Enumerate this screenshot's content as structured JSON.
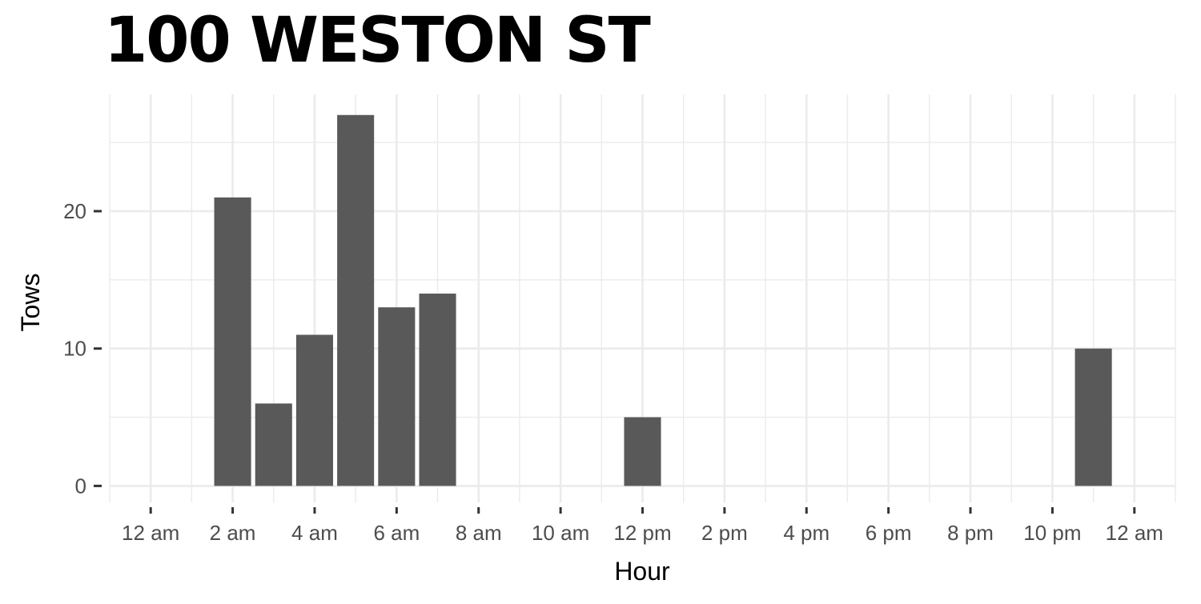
{
  "chart_data": {
    "type": "bar",
    "title": "100 WESTON ST",
    "xlabel": "Hour",
    "ylabel": "Tows",
    "x_ticks": [
      "12 am",
      "2 am",
      "4 am",
      "6 am",
      "8 am",
      "10 am",
      "12 pm",
      "2 pm",
      "4 pm",
      "6 pm",
      "8 pm",
      "10 pm",
      "12 am"
    ],
    "y_ticks": [
      0,
      10,
      20
    ],
    "xlim": [
      -1,
      25
    ],
    "ylim": [
      -1.2,
      28.5
    ],
    "grid": true,
    "bar_color": "#595959",
    "grid_color": "#ebebeb",
    "points": [
      {
        "hour": 2,
        "tows": 21
      },
      {
        "hour": 3,
        "tows": 6
      },
      {
        "hour": 4,
        "tows": 11
      },
      {
        "hour": 5,
        "tows": 27
      },
      {
        "hour": 6,
        "tows": 13
      },
      {
        "hour": 7,
        "tows": 14
      },
      {
        "hour": 12,
        "tows": 5
      },
      {
        "hour": 23,
        "tows": 10
      }
    ]
  }
}
